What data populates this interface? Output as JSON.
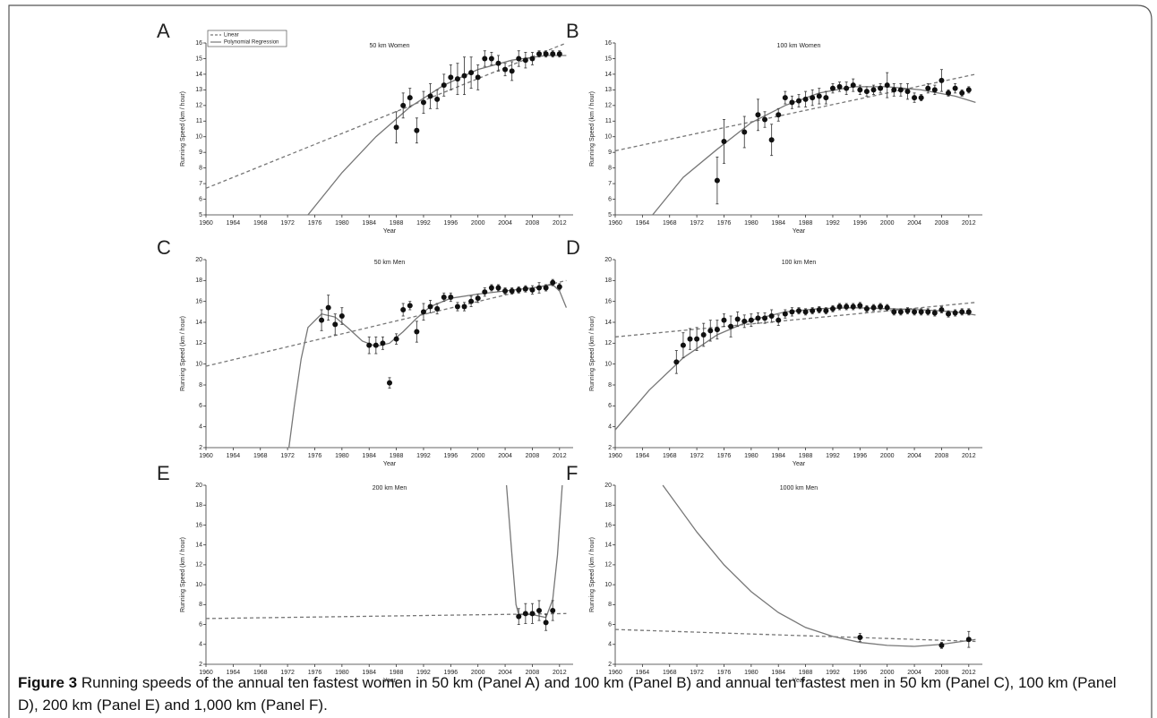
{
  "chart_data": [
    {
      "type": "scatter",
      "panel": "A",
      "title": "50 km Women",
      "x_label": "Year",
      "y_label": "Running Speed (km / hour)",
      "legend": [
        "Linear",
        "Polynomial Regression"
      ],
      "xlim": [
        1960,
        2014
      ],
      "xticks": [
        1960,
        1964,
        1968,
        1972,
        1976,
        1980,
        1984,
        1988,
        1992,
        1996,
        2000,
        2004,
        2008,
        2012
      ],
      "ylim": [
        5,
        16
      ],
      "yticks": [
        5,
        6,
        7,
        8,
        9,
        10,
        11,
        12,
        13,
        14,
        15,
        16
      ],
      "points": {
        "color": "#111111",
        "x": [
          1988,
          1989,
          1990,
          1991,
          1992,
          1993,
          1994,
          1995,
          1996,
          1997,
          1998,
          1999,
          2000,
          2001,
          2002,
          2003,
          2004,
          2005,
          2006,
          2007,
          2008,
          2009,
          2010,
          2011,
          2012
        ],
        "values": [
          10.6,
          12.0,
          12.5,
          10.4,
          12.2,
          12.6,
          12.4,
          13.3,
          13.8,
          13.7,
          13.9,
          14.1,
          13.8,
          15.0,
          15.0,
          14.7,
          14.3,
          14.2,
          15.0,
          14.9,
          15.0,
          15.3,
          15.3,
          15.3,
          15.3
        ],
        "errors": [
          1.0,
          0.8,
          0.6,
          0.8,
          0.7,
          0.8,
          0.6,
          0.7,
          0.8,
          1.0,
          1.2,
          1.0,
          0.8,
          0.5,
          0.4,
          0.5,
          0.4,
          0.6,
          0.5,
          0.5,
          0.4,
          0.2,
          0.2,
          0.2,
          0.2
        ]
      },
      "linear": {
        "color": "#777777",
        "x": [
          1960,
          2013
        ],
        "values": [
          6.7,
          16.0
        ]
      },
      "polynomial": {
        "color": "#777777",
        "x": [
          1975,
          1980,
          1985,
          1990,
          1995,
          2000,
          2005,
          2010,
          2013
        ],
        "values": [
          5.0,
          7.7,
          10.0,
          11.9,
          13.3,
          14.3,
          14.9,
          15.2,
          15.2
        ]
      }
    },
    {
      "type": "scatter",
      "panel": "B",
      "title": "100 km Women",
      "x_label": "Year",
      "y_label": "Running Speed (km / hour)",
      "xlim": [
        1960,
        2014
      ],
      "xticks": [
        1960,
        1964,
        1968,
        1972,
        1976,
        1980,
        1984,
        1988,
        1992,
        1996,
        2000,
        2004,
        2008,
        2012
      ],
      "ylim": [
        5,
        16
      ],
      "yticks": [
        5,
        6,
        7,
        8,
        9,
        10,
        11,
        12,
        13,
        14,
        15,
        16
      ],
      "points": {
        "color": "#111111",
        "x": [
          1975,
          1976,
          1979,
          1981,
          1982,
          1983,
          1984,
          1985,
          1986,
          1987,
          1988,
          1989,
          1990,
          1991,
          1992,
          1993,
          1994,
          1995,
          1996,
          1997,
          1998,
          1999,
          2000,
          2001,
          2002,
          2003,
          2004,
          2005,
          2006,
          2007,
          2008,
          2009,
          2010,
          2011,
          2012
        ],
        "values": [
          7.2,
          9.7,
          10.3,
          11.4,
          11.1,
          9.8,
          11.4,
          12.5,
          12.2,
          12.3,
          12.4,
          12.5,
          12.6,
          12.5,
          13.1,
          13.2,
          13.1,
          13.3,
          13.0,
          12.9,
          13.0,
          13.1,
          13.3,
          13.0,
          13.0,
          12.9,
          12.5,
          12.5,
          13.1,
          13.0,
          13.6,
          12.8,
          13.1,
          12.8,
          13.0
        ],
        "errors": [
          1.5,
          1.4,
          1.0,
          1.0,
          0.5,
          1.0,
          0.4,
          0.4,
          0.4,
          0.4,
          0.5,
          0.5,
          0.5,
          0.4,
          0.3,
          0.3,
          0.4,
          0.4,
          0.3,
          0.3,
          0.3,
          0.3,
          0.8,
          0.4,
          0.4,
          0.5,
          0.3,
          0.2,
          0.3,
          0.3,
          0.7,
          0.2,
          0.3,
          0.2,
          0.2
        ]
      },
      "linear": {
        "color": "#777777",
        "x": [
          1960,
          2013
        ],
        "values": [
          9.1,
          14.0
        ]
      },
      "polynomial": {
        "color": "#777777",
        "x": [
          1965.5,
          1970,
          1975,
          1980,
          1985,
          1990,
          1995,
          2000,
          2005,
          2010,
          2013
        ],
        "values": [
          5.0,
          7.4,
          9.2,
          10.9,
          12.0,
          12.8,
          13.2,
          13.2,
          13.0,
          12.6,
          12.2
        ]
      }
    },
    {
      "type": "scatter",
      "panel": "C",
      "title": "50 km Men",
      "x_label": "Year",
      "y_label": "Running Speed (km / hour)",
      "xlim": [
        1960,
        2014
      ],
      "xticks": [
        1960,
        1964,
        1968,
        1972,
        1976,
        1980,
        1984,
        1988,
        1992,
        1996,
        2000,
        2004,
        2008,
        2012
      ],
      "ylim": [
        2,
        20
      ],
      "yticks": [
        2,
        4,
        6,
        8,
        10,
        12,
        14,
        16,
        18,
        20
      ],
      "points": {
        "color": "#111111",
        "x": [
          1977,
          1978,
          1979,
          1980,
          1984,
          1985,
          1986,
          1987,
          1988,
          1989,
          1990,
          1991,
          1992,
          1993,
          1994,
          1995,
          1996,
          1997,
          1998,
          1999,
          2000,
          2001,
          2002,
          2003,
          2004,
          2005,
          2006,
          2007,
          2008,
          2009,
          2010,
          2011,
          2012
        ],
        "values": [
          14.2,
          15.4,
          13.8,
          14.6,
          11.8,
          11.8,
          12.0,
          8.2,
          12.4,
          15.2,
          15.6,
          13.1,
          15.0,
          15.5,
          15.3,
          16.4,
          16.4,
          15.5,
          15.5,
          16.0,
          16.3,
          16.9,
          17.3,
          17.3,
          17.0,
          17.0,
          17.1,
          17.2,
          17.1,
          17.3,
          17.3,
          17.8,
          17.4
        ],
        "errors": [
          1.0,
          1.2,
          1.0,
          0.8,
          0.8,
          0.8,
          0.6,
          0.5,
          0.5,
          0.6,
          0.4,
          1.0,
          0.8,
          0.6,
          0.5,
          0.4,
          0.4,
          0.4,
          0.4,
          0.5,
          0.4,
          0.4,
          0.3,
          0.3,
          0.3,
          0.3,
          0.3,
          0.3,
          0.4,
          0.5,
          0.3,
          0.3,
          0.3
        ]
      },
      "linear": {
        "color": "#777777",
        "x": [
          1960,
          2013
        ],
        "values": [
          9.8,
          18.0
        ]
      },
      "polynomial": {
        "color": "#777777",
        "x": [
          1972.2,
          1973,
          1974,
          1975,
          1977,
          1979,
          1981,
          1983,
          1985,
          1987,
          1989,
          1991,
          1993,
          1996,
          2000,
          2004,
          2008,
          2011,
          2012,
          2013
        ],
        "values": [
          2,
          6,
          10.5,
          13.5,
          14.8,
          14.5,
          13.4,
          12.2,
          11.7,
          12.0,
          13.1,
          14.4,
          15.5,
          16.3,
          16.7,
          17.0,
          17.3,
          17.6,
          17.0,
          15.4
        ]
      }
    },
    {
      "type": "scatter",
      "panel": "D",
      "title": "100 km Men",
      "x_label": "Year",
      "y_label": "Running Speed (km / hour)",
      "xlim": [
        1960,
        2014
      ],
      "xticks": [
        1960,
        1964,
        1968,
        1972,
        1976,
        1980,
        1984,
        1988,
        1992,
        1996,
        2000,
        2004,
        2008,
        2012
      ],
      "ylim": [
        2,
        20
      ],
      "yticks": [
        2,
        4,
        6,
        8,
        10,
        12,
        14,
        16,
        18,
        20
      ],
      "points": {
        "color": "#111111",
        "x": [
          1969,
          1970,
          1971,
          1972,
          1973,
          1974,
          1975,
          1976,
          1977,
          1978,
          1979,
          1980,
          1981,
          1982,
          1983,
          1984,
          1985,
          1986,
          1987,
          1988,
          1989,
          1990,
          1991,
          1992,
          1993,
          1994,
          1995,
          1996,
          1997,
          1998,
          1999,
          2000,
          2001,
          2002,
          2003,
          2004,
          2005,
          2006,
          2007,
          2008,
          2009,
          2010,
          2011,
          2012
        ],
        "values": [
          10.2,
          11.8,
          12.4,
          12.4,
          12.8,
          13.2,
          13.3,
          14.2,
          13.6,
          14.3,
          14.1,
          14.2,
          14.4,
          14.4,
          14.6,
          14.2,
          14.8,
          15.0,
          15.1,
          15.0,
          15.1,
          15.2,
          15.1,
          15.3,
          15.5,
          15.5,
          15.5,
          15.6,
          15.3,
          15.4,
          15.5,
          15.4,
          15.0,
          15.0,
          15.1,
          15.0,
          15.0,
          15.0,
          14.9,
          15.2,
          14.8,
          14.9,
          15.0,
          15.0
        ],
        "errors": [
          1.1,
          1.2,
          1.0,
          1.1,
          1.1,
          1.0,
          0.9,
          0.6,
          1.0,
          0.7,
          0.6,
          0.6,
          0.5,
          0.5,
          0.6,
          0.5,
          0.4,
          0.4,
          0.3,
          0.3,
          0.3,
          0.3,
          0.3,
          0.3,
          0.3,
          0.3,
          0.3,
          0.3,
          0.3,
          0.3,
          0.3,
          0.3,
          0.3,
          0.3,
          0.3,
          0.3,
          0.3,
          0.3,
          0.3,
          0.3,
          0.3,
          0.3,
          0.3,
          0.3
        ]
      },
      "linear": {
        "color": "#777777",
        "x": [
          1960,
          2013
        ],
        "values": [
          12.6,
          15.9
        ]
      },
      "polynomial": {
        "color": "#777777",
        "x": [
          1960,
          1965,
          1970,
          1975,
          1980,
          1985,
          1990,
          1995,
          2000,
          2005,
          2010,
          2013
        ],
        "values": [
          3.7,
          7.5,
          10.6,
          12.8,
          14.2,
          15.0,
          15.3,
          15.4,
          15.3,
          15.2,
          15.0,
          14.7
        ]
      }
    },
    {
      "type": "scatter",
      "panel": "E",
      "title": "200 km Men",
      "x_label": "Year",
      "y_label": "Running Speed (km / hour)",
      "xlim": [
        1960,
        2014
      ],
      "xticks": [
        1960,
        1964,
        1968,
        1972,
        1976,
        1980,
        1984,
        1988,
        1992,
        1996,
        2000,
        2004,
        2008,
        2012
      ],
      "ylim": [
        2,
        20
      ],
      "yticks": [
        2,
        4,
        6,
        8,
        10,
        12,
        14,
        16,
        18,
        20
      ],
      "points": {
        "color": "#111111",
        "x": [
          2006,
          2007,
          2008,
          2009,
          2010,
          2011
        ],
        "values": [
          6.8,
          7.1,
          7.1,
          7.4,
          6.2,
          7.4
        ],
        "errors": [
          0.8,
          1.0,
          1.0,
          1.0,
          0.8,
          1.0
        ]
      },
      "linear": {
        "color": "#777777",
        "x": [
          1960,
          2013
        ],
        "values": [
          6.6,
          7.1
        ]
      },
      "polynomial": {
        "color": "#777777",
        "x": [
          2004.2,
          2005,
          2005.6,
          2006,
          2008,
          2010,
          2011,
          2011.7,
          2012.4
        ],
        "values": [
          20,
          13,
          8,
          7.0,
          7.0,
          6.7,
          8.5,
          13,
          20
        ]
      }
    },
    {
      "type": "scatter",
      "panel": "F",
      "title": "1000 km Men",
      "x_label": "Year",
      "y_label": "Running Speed (km / hour)",
      "xlim": [
        1960,
        2014
      ],
      "xticks": [
        1960,
        1964,
        1968,
        1972,
        1976,
        1980,
        1984,
        1988,
        1992,
        1996,
        2000,
        2004,
        2008,
        2012
      ],
      "ylim": [
        2,
        20
      ],
      "yticks": [
        2,
        4,
        6,
        8,
        10,
        12,
        14,
        16,
        18,
        20
      ],
      "points": {
        "color": "#111111",
        "x": [
          1996,
          2008,
          2012
        ],
        "values": [
          4.7,
          3.9,
          4.5
        ],
        "errors": [
          0.4,
          0.3,
          0.8
        ]
      },
      "linear": {
        "color": "#777777",
        "x": [
          1960,
          2013
        ],
        "values": [
          5.5,
          4.3
        ]
      },
      "polynomial": {
        "color": "#777777",
        "x": [
          1967,
          1972,
          1976,
          1980,
          1984,
          1988,
          1992,
          1996,
          2000,
          2004,
          2008,
          2012,
          2013
        ],
        "values": [
          20,
          15.3,
          12,
          9.3,
          7.2,
          5.7,
          4.8,
          4.2,
          3.9,
          3.8,
          4.0,
          4.4,
          4.5
        ]
      }
    }
  ],
  "caption": {
    "label": "Figure 3",
    "text": "Running speeds of the annual ten fastest women in 50 km (Panel A) and 100 km (Panel B) and annual ten fastest men in 50 km (Panel C), 100 km (Panel D), 200 km (Panel E) and 1,000 km (Panel F)."
  }
}
